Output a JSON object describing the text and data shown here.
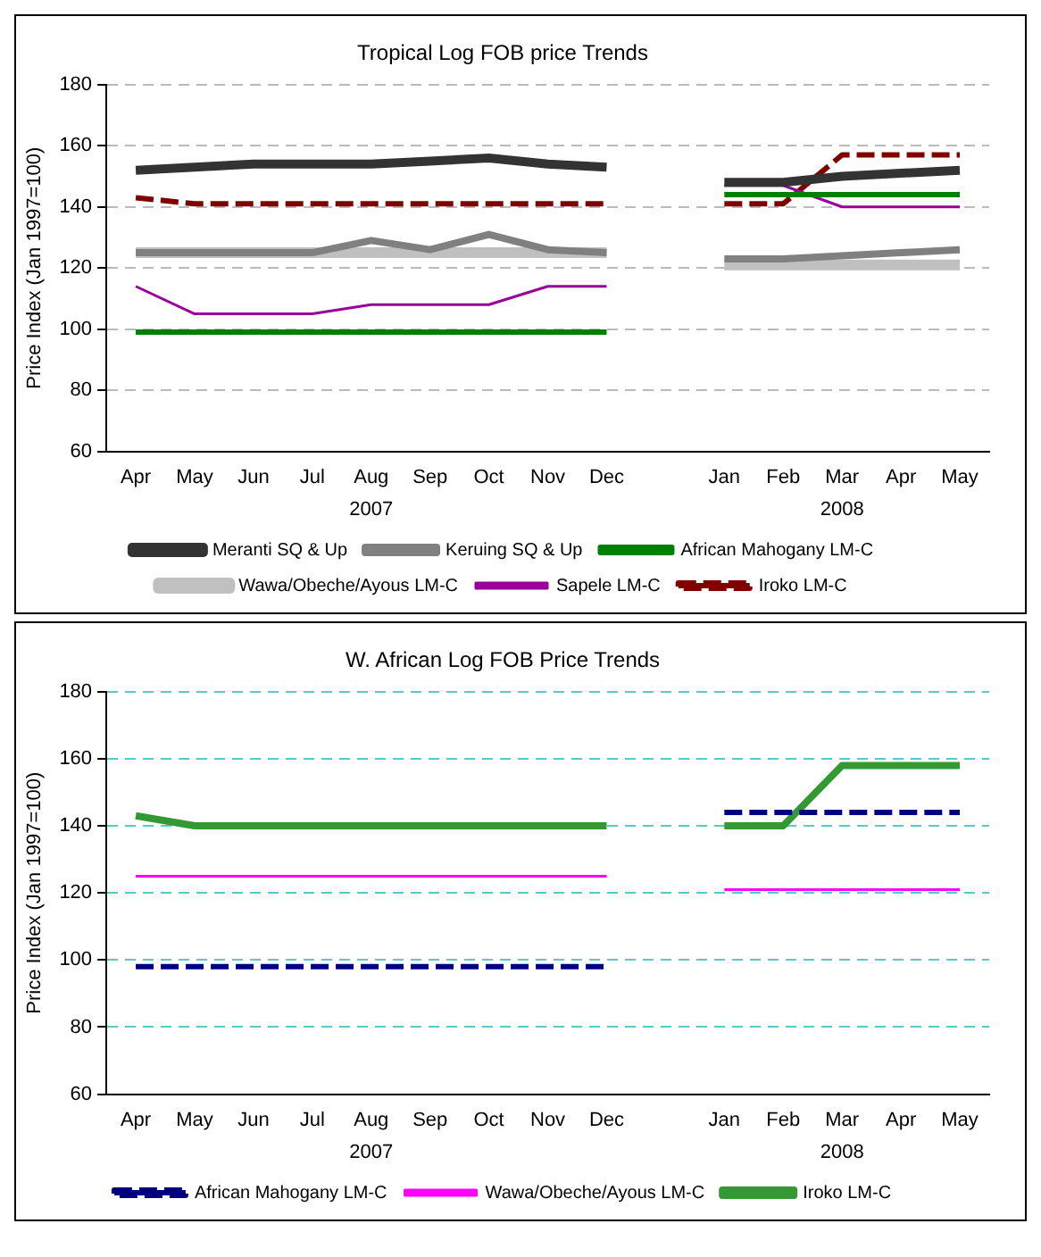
{
  "chart_data": [
    {
      "type": "line",
      "title": "Tropical Log FOB price Trends",
      "ylabel": "Price Index (Jan 1997=100)",
      "categories": [
        "Apr",
        "May",
        "Jun",
        "Jul",
        "Aug",
        "Sep",
        "Oct",
        "Nov",
        "Dec",
        null,
        "Jan",
        "Feb",
        "Mar",
        "Apr",
        "May"
      ],
      "series": [
        {
          "name": "Meranti SQ & Up",
          "color": "#333333",
          "values": [
            152,
            153,
            154,
            154,
            154,
            155,
            156,
            154,
            153,
            null,
            148,
            148,
            150,
            151,
            152
          ]
        },
        {
          "name": "Keruing SQ & Up",
          "color": "#808080",
          "values": [
            125,
            125,
            125,
            125,
            129,
            126,
            131,
            126,
            125,
            null,
            123,
            123,
            124,
            125,
            126
          ]
        },
        {
          "name": "African Mahogany LM-C",
          "color": "#008000",
          "values": [
            99,
            99,
            99,
            99,
            99,
            99,
            99,
            99,
            99,
            null,
            144,
            144,
            144,
            144,
            144
          ]
        },
        {
          "name": "Wawa/Obeche/Ayous LM-C",
          "color": "#c0c0c0",
          "values": [
            125,
            125,
            125,
            125,
            125,
            125,
            125,
            125,
            125,
            null,
            121,
            121,
            121,
            121,
            121
          ]
        },
        {
          "name": "Sapele LM-C",
          "color": "#990099",
          "values": [
            114,
            105,
            105,
            105,
            108,
            108,
            108,
            114,
            114,
            null,
            147,
            147,
            140,
            140,
            140
          ]
        },
        {
          "name": "Iroko LM-C",
          "color": "#800000",
          "line_style": "dashed",
          "values": [
            143,
            141,
            141,
            141,
            141,
            141,
            141,
            141,
            141,
            null,
            141,
            141,
            157,
            157,
            157
          ]
        }
      ],
      "ylim": [
        60,
        180
      ],
      "yticks": [
        60,
        80,
        100,
        120,
        140,
        160,
        180
      ],
      "grid": "y",
      "legend": "bottom",
      "marker": "none",
      "annotations": [
        "2007",
        "2008"
      ]
    },
    {
      "type": "line",
      "title": "W. African Log FOB Price Trends",
      "ylabel": "Price Index (Jan 1997=100)",
      "categories": [
        "Apr",
        "May",
        "Jun",
        "Jul",
        "Aug",
        "Sep",
        "Oct",
        "Nov",
        "Dec",
        null,
        "Jan",
        "Feb",
        "Mar",
        "Apr",
        "May"
      ],
      "series": [
        {
          "name": "African Mahogany LM-C",
          "color": "#000080",
          "line_style": "dashed",
          "values": [
            98,
            98,
            98,
            98,
            98,
            98,
            98,
            98,
            98,
            null,
            144,
            144,
            144,
            144,
            144
          ]
        },
        {
          "name": "Wawa/Obeche/Ayous LM-C",
          "color": "#ff00ff",
          "values": [
            125,
            125,
            125,
            125,
            125,
            125,
            125,
            125,
            125,
            null,
            121,
            121,
            121,
            121,
            121
          ]
        },
        {
          "name": "Iroko LM-C",
          "color": "#339933",
          "values": [
            143,
            140,
            140,
            140,
            140,
            140,
            140,
            140,
            140,
            null,
            140,
            140,
            158,
            158,
            158
          ]
        }
      ],
      "ylim": [
        60,
        180
      ],
      "yticks": [
        60,
        80,
        100,
        120,
        140,
        160,
        180
      ],
      "grid": "y",
      "legend": "bottom",
      "marker": "none",
      "annotations": [
        "2007",
        "2008"
      ]
    }
  ]
}
